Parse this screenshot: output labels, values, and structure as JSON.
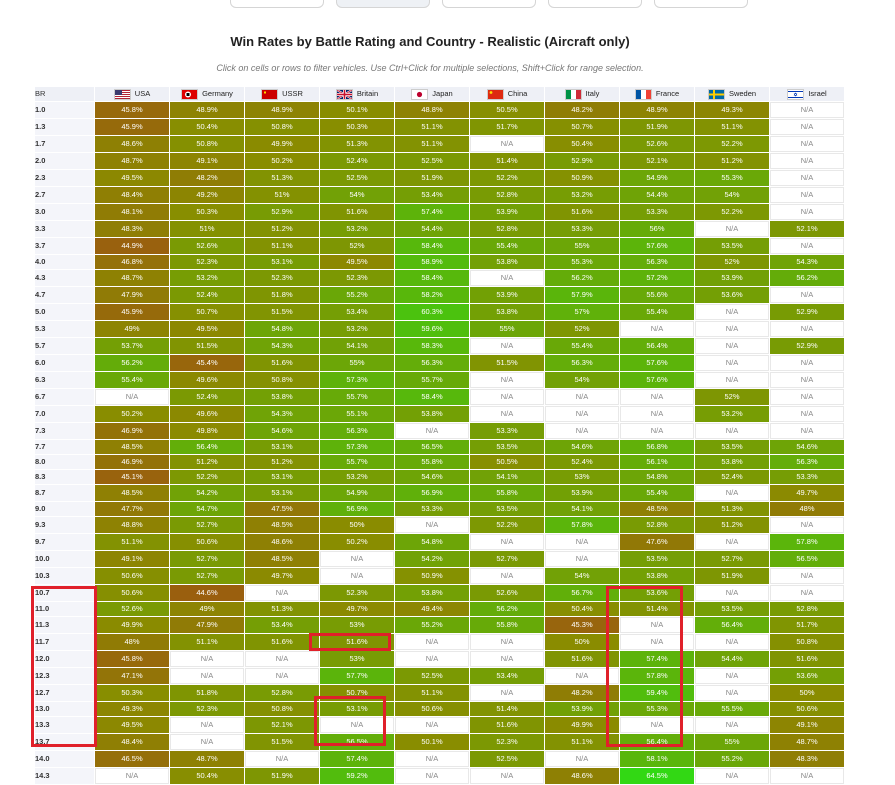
{
  "title": "Win Rates by Battle Rating and Country - Realistic (Aircraft only)",
  "hint": "Click on cells or rows to filter vehicles. Use Ctrl+Click for multiple selections, Shift+Click for range selection.",
  "br_header": "BR",
  "countries": [
    {
      "name": "USA",
      "flag": "usa-flag-icon"
    },
    {
      "name": "Germany",
      "flag": "germany-flag-icon"
    },
    {
      "name": "USSR",
      "flag": "ussr-flag-icon"
    },
    {
      "name": "Britain",
      "flag": "britain-flag-icon"
    },
    {
      "name": "Japan",
      "flag": "japan-flag-icon"
    },
    {
      "name": "China",
      "flag": "china-flag-icon"
    },
    {
      "name": "Italy",
      "flag": "italy-flag-icon"
    },
    {
      "name": "France",
      "flag": "france-flag-icon"
    },
    {
      "name": "Sweden",
      "flag": "sweden-flag-icon"
    },
    {
      "name": "Israel",
      "flag": "israel-flag-icon"
    }
  ],
  "rows": [
    {
      "br": "1.0",
      "v": [
        "45.8%",
        "48.9%",
        "48.9%",
        "50.1%",
        "48.8%",
        "50.5%",
        "48.2%",
        "48.9%",
        "49.3%",
        "N/A"
      ]
    },
    {
      "br": "1.3",
      "v": [
        "45.9%",
        "50.4%",
        "50.8%",
        "50.3%",
        "51.1%",
        "51.7%",
        "50.7%",
        "51.9%",
        "51.1%",
        "N/A"
      ]
    },
    {
      "br": "1.7",
      "v": [
        "48.6%",
        "50.8%",
        "49.9%",
        "51.3%",
        "51.1%",
        "N/A",
        "50.4%",
        "52.6%",
        "52.2%",
        "N/A"
      ]
    },
    {
      "br": "2.0",
      "v": [
        "48.7%",
        "49.1%",
        "50.2%",
        "52.4%",
        "52.5%",
        "51.4%",
        "52.9%",
        "52.1%",
        "51.2%",
        "N/A"
      ]
    },
    {
      "br": "2.3",
      "v": [
        "49.5%",
        "48.2%",
        "51.3%",
        "52.5%",
        "51.9%",
        "52.2%",
        "50.9%",
        "54.9%",
        "55.3%",
        "N/A"
      ]
    },
    {
      "br": "2.7",
      "v": [
        "48.4%",
        "49.2%",
        "51%",
        "54%",
        "53.4%",
        "52.8%",
        "53.2%",
        "54.4%",
        "54%",
        "N/A"
      ]
    },
    {
      "br": "3.0",
      "v": [
        "48.1%",
        "50.3%",
        "52.9%",
        "51.6%",
        "57.4%",
        "53.9%",
        "51.6%",
        "53.3%",
        "52.2%",
        "N/A"
      ]
    },
    {
      "br": "3.3",
      "v": [
        "48.3%",
        "51%",
        "51.2%",
        "53.2%",
        "54.4%",
        "52.8%",
        "53.3%",
        "56%",
        "N/A",
        "52.1%"
      ]
    },
    {
      "br": "3.7",
      "v": [
        "44.9%",
        "52.6%",
        "51.1%",
        "52%",
        "58.4%",
        "55.4%",
        "55%",
        "57.6%",
        "53.5%",
        "N/A"
      ]
    },
    {
      "br": "4.0",
      "v": [
        "46.8%",
        "52.3%",
        "53.1%",
        "49.5%",
        "58.9%",
        "53.8%",
        "55.3%",
        "56.3%",
        "52%",
        "54.3%"
      ]
    },
    {
      "br": "4.3",
      "v": [
        "48.7%",
        "53.2%",
        "52.3%",
        "52.3%",
        "58.4%",
        "N/A",
        "56.2%",
        "57.2%",
        "53.9%",
        "56.2%"
      ]
    },
    {
      "br": "4.7",
      "v": [
        "47.9%",
        "52.4%",
        "51.8%",
        "55.2%",
        "58.2%",
        "53.9%",
        "57.9%",
        "55.6%",
        "53.6%",
        "N/A"
      ]
    },
    {
      "br": "5.0",
      "v": [
        "45.9%",
        "50.7%",
        "51.5%",
        "53.4%",
        "60.3%",
        "53.8%",
        "57%",
        "55.4%",
        "N/A",
        "52.9%"
      ]
    },
    {
      "br": "5.3",
      "v": [
        "49%",
        "49.5%",
        "54.8%",
        "53.2%",
        "59.6%",
        "55%",
        "52%",
        "N/A",
        "N/A",
        "N/A"
      ]
    },
    {
      "br": "5.7",
      "v": [
        "53.7%",
        "51.5%",
        "54.3%",
        "54.1%",
        "58.3%",
        "N/A",
        "55.4%",
        "56.4%",
        "N/A",
        "52.9%"
      ]
    },
    {
      "br": "6.0",
      "v": [
        "56.2%",
        "45.4%",
        "51.6%",
        "55%",
        "56.3%",
        "51.5%",
        "56.3%",
        "57.6%",
        "N/A",
        "N/A"
      ]
    },
    {
      "br": "6.3",
      "v": [
        "55.4%",
        "49.6%",
        "50.8%",
        "57.3%",
        "55.7%",
        "N/A",
        "54%",
        "57.6%",
        "N/A",
        "N/A"
      ]
    },
    {
      "br": "6.7",
      "v": [
        "N/A",
        "52.4%",
        "53.8%",
        "55.7%",
        "58.4%",
        "N/A",
        "N/A",
        "N/A",
        "52%",
        "N/A"
      ]
    },
    {
      "br": "7.0",
      "v": [
        "50.2%",
        "49.6%",
        "54.3%",
        "55.1%",
        "53.8%",
        "N/A",
        "N/A",
        "N/A",
        "53.2%",
        "N/A"
      ]
    },
    {
      "br": "7.3",
      "v": [
        "46.9%",
        "49.8%",
        "54.6%",
        "56.3%",
        "N/A",
        "53.3%",
        "N/A",
        "N/A",
        "N/A",
        "N/A"
      ]
    },
    {
      "br": "7.7",
      "v": [
        "48.5%",
        "56.4%",
        "53.1%",
        "57.3%",
        "56.5%",
        "53.5%",
        "54.6%",
        "56.8%",
        "53.5%",
        "54.6%"
      ]
    },
    {
      "br": "8.0",
      "v": [
        "46.9%",
        "51.2%",
        "51.2%",
        "55.7%",
        "55.8%",
        "50.5%",
        "52.4%",
        "56.1%",
        "53.8%",
        "56.3%"
      ]
    },
    {
      "br": "8.3",
      "v": [
        "45.1%",
        "52.2%",
        "53.1%",
        "53.2%",
        "54.6%",
        "54.1%",
        "53%",
        "54.8%",
        "52.4%",
        "53.3%"
      ]
    },
    {
      "br": "8.7",
      "v": [
        "48.5%",
        "54.2%",
        "53.1%",
        "54.9%",
        "56.9%",
        "55.8%",
        "53.9%",
        "55.4%",
        "N/A",
        "49.7%"
      ]
    },
    {
      "br": "9.0",
      "v": [
        "47.7%",
        "54.7%",
        "47.5%",
        "56.9%",
        "53.3%",
        "53.5%",
        "54.1%",
        "48.5%",
        "51.3%",
        "48%"
      ]
    },
    {
      "br": "9.3",
      "v": [
        "48.8%",
        "52.7%",
        "48.5%",
        "50%",
        "N/A",
        "52.2%",
        "57.8%",
        "52.8%",
        "51.2%",
        "N/A"
      ]
    },
    {
      "br": "9.7",
      "v": [
        "51.1%",
        "50.6%",
        "48.6%",
        "50.2%",
        "54.8%",
        "N/A",
        "N/A",
        "47.6%",
        "N/A",
        "57.8%"
      ]
    },
    {
      "br": "10.0",
      "v": [
        "49.1%",
        "52.7%",
        "48.5%",
        "N/A",
        "54.2%",
        "52.7%",
        "N/A",
        "53.5%",
        "52.7%",
        "56.5%"
      ]
    },
    {
      "br": "10.3",
      "v": [
        "50.6%",
        "52.7%",
        "49.7%",
        "N/A",
        "50.9%",
        "N/A",
        "54%",
        "53.8%",
        "51.9%",
        "N/A"
      ]
    },
    {
      "br": "10.7",
      "v": [
        "50.6%",
        "44.6%",
        "N/A",
        "52.3%",
        "53.8%",
        "52.6%",
        "56.7%",
        "53.6%",
        "N/A",
        "N/A"
      ]
    },
    {
      "br": "11.0",
      "v": [
        "52.6%",
        "49%",
        "51.3%",
        "49.7%",
        "49.4%",
        "56.2%",
        "50.4%",
        "51.4%",
        "53.5%",
        "52.8%"
      ]
    },
    {
      "br": "11.3",
      "v": [
        "49.9%",
        "47.9%",
        "53.4%",
        "53%",
        "55.2%",
        "55.8%",
        "45.3%",
        "N/A",
        "56.4%",
        "51.7%"
      ]
    },
    {
      "br": "11.7",
      "v": [
        "48%",
        "51.1%",
        "51.6%",
        "51.6%",
        "N/A",
        "N/A",
        "50%",
        "N/A",
        "N/A",
        "50.8%"
      ]
    },
    {
      "br": "12.0",
      "v": [
        "45.8%",
        "N/A",
        "N/A",
        "53%",
        "N/A",
        "N/A",
        "51.6%",
        "57.4%",
        "54.4%",
        "51.6%"
      ]
    },
    {
      "br": "12.3",
      "v": [
        "47.1%",
        "N/A",
        "N/A",
        "57.7%",
        "52.5%",
        "53.4%",
        "N/A",
        "57.8%",
        "N/A",
        "53.6%"
      ]
    },
    {
      "br": "12.7",
      "v": [
        "50.3%",
        "51.8%",
        "52.8%",
        "50.7%",
        "51.1%",
        "N/A",
        "48.2%",
        "59.4%",
        "N/A",
        "50%"
      ]
    },
    {
      "br": "13.0",
      "v": [
        "49.3%",
        "52.3%",
        "50.8%",
        "53.1%",
        "50.6%",
        "51.4%",
        "53.9%",
        "55.3%",
        "55.5%",
        "50.6%"
      ]
    },
    {
      "br": "13.3",
      "v": [
        "49.5%",
        "N/A",
        "52.1%",
        "N/A",
        "N/A",
        "51.6%",
        "49.9%",
        "N/A",
        "N/A",
        "49.1%"
      ]
    },
    {
      "br": "13.7",
      "v": [
        "48.4%",
        "N/A",
        "51.5%",
        "56.5%",
        "50.1%",
        "52.3%",
        "51.1%",
        "56.4%",
        "55%",
        "48.7%"
      ]
    },
    {
      "br": "14.0",
      "v": [
        "46.5%",
        "48.7%",
        "N/A",
        "57.4%",
        "N/A",
        "52.5%",
        "N/A",
        "58.1%",
        "55.2%",
        "48.3%"
      ]
    },
    {
      "br": "14.3",
      "v": [
        "N/A",
        "50.4%",
        "51.9%",
        "59.2%",
        "N/A",
        "N/A",
        "48.6%",
        "64.5%",
        "N/A",
        "N/A"
      ]
    }
  ],
  "colors": {
    "low": "#9c5a10",
    "mid": "#8a8c00",
    "high": "#32d814",
    "na_bg": "#ffffff",
    "highlight": "#e0202a"
  }
}
